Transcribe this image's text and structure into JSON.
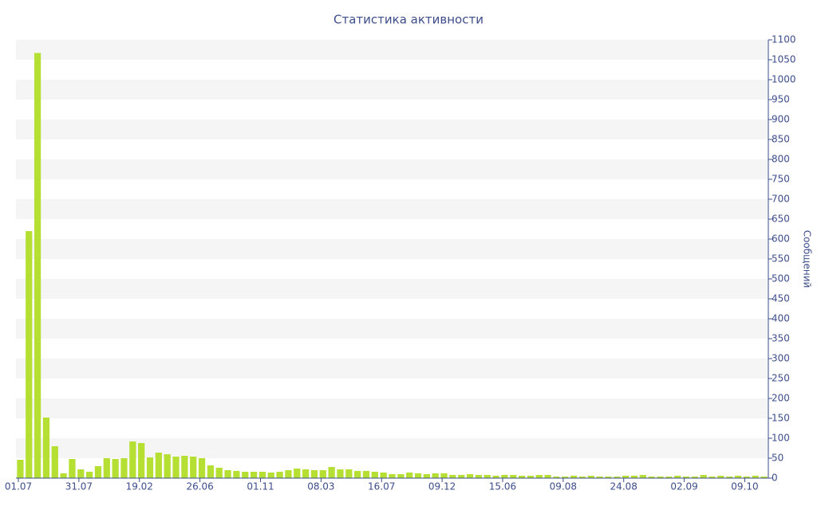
{
  "chart_data": {
    "type": "bar",
    "title": "Статистика активности",
    "y_axis_label": "Сообщений",
    "y_axis_side": "right",
    "color": "#b5df32",
    "grid": "bands",
    "categories": [
      "01.07",
      null,
      null,
      null,
      null,
      null,
      null,
      "31.07",
      null,
      null,
      null,
      null,
      null,
      null,
      "19.02",
      null,
      null,
      null,
      null,
      null,
      null,
      "26.06",
      null,
      null,
      null,
      null,
      null,
      null,
      "01.11",
      null,
      null,
      null,
      null,
      null,
      null,
      "08.03",
      null,
      null,
      null,
      null,
      null,
      null,
      "16.07",
      null,
      null,
      null,
      null,
      null,
      null,
      "09.12",
      null,
      null,
      null,
      null,
      null,
      null,
      "15.06",
      null,
      null,
      null,
      null,
      null,
      null,
      "09.08",
      null,
      null,
      null,
      null,
      null,
      null,
      "24.08",
      null,
      null,
      null,
      null,
      null,
      null,
      "02.09",
      null,
      null,
      null,
      null,
      null,
      null,
      "09.10",
      null,
      null
    ],
    "values": [
      46,
      620,
      1067,
      152,
      80,
      12,
      48,
      22,
      16,
      30,
      50,
      48,
      50,
      92,
      88,
      52,
      64,
      60,
      54,
      56,
      54,
      50,
      32,
      26,
      20,
      18,
      16,
      16,
      16,
      14,
      16,
      20,
      24,
      22,
      20,
      20,
      28,
      22,
      22,
      18,
      18,
      16,
      14,
      10,
      10,
      14,
      12,
      10,
      12,
      12,
      8,
      8,
      10,
      8,
      8,
      6,
      8,
      8,
      6,
      6,
      8,
      8,
      4,
      4,
      6,
      4,
      6,
      4,
      4,
      4,
      6,
      6,
      8,
      4,
      4,
      4,
      6,
      4,
      4,
      8,
      4,
      6,
      4,
      6,
      4,
      6,
      4
    ],
    "ylim": [
      0,
      1100
    ],
    "yticks": [
      0,
      50,
      100,
      150,
      200,
      250,
      300,
      350,
      400,
      450,
      500,
      550,
      600,
      650,
      700,
      750,
      800,
      850,
      900,
      950,
      1000,
      1050,
      1100
    ]
  }
}
